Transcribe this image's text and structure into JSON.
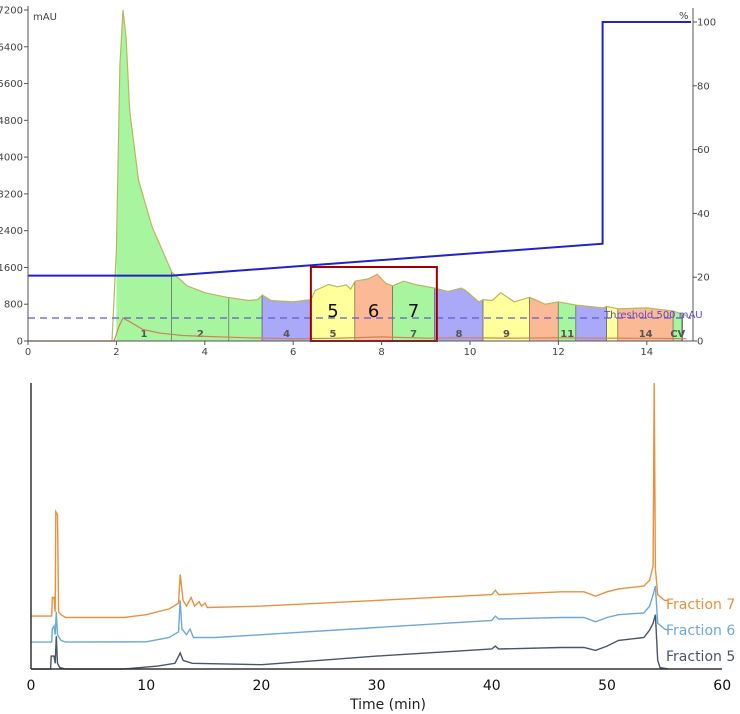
{
  "chart_data": [
    {
      "type": "area",
      "left_axis_unit": "mAU",
      "right_axis_unit": "%",
      "xlim": [
        0,
        15
      ],
      "ylim": [
        0,
        7200
      ],
      "y2lim": [
        0,
        100
      ],
      "x_ticks": [
        "0",
        "2",
        "4",
        "6",
        "8",
        "10",
        "12",
        "14"
      ],
      "y_ticks": [
        "0",
        "800",
        "1600",
        "2400",
        "3200",
        "4000",
        "4800",
        "5600",
        "6400",
        "7200"
      ],
      "y2_ticks": [
        "0",
        "20",
        "40",
        "60",
        "80",
        "100"
      ],
      "uv_trace": [
        [
          0,
          0
        ],
        [
          1.9,
          0
        ],
        [
          2.0,
          2000
        ],
        [
          2.08,
          6000
        ],
        [
          2.15,
          7200
        ],
        [
          2.22,
          6600
        ],
        [
          2.3,
          5000
        ],
        [
          2.5,
          3500
        ],
        [
          2.8,
          2500
        ],
        [
          3.25,
          1500
        ],
        [
          3.6,
          1200
        ],
        [
          4,
          1050
        ],
        [
          4.5,
          950
        ],
        [
          5.0,
          880
        ],
        [
          5.2,
          900
        ],
        [
          5.3,
          1000
        ],
        [
          5.5,
          880
        ],
        [
          6.0,
          850
        ],
        [
          6.4,
          900
        ],
        [
          6.5,
          1100
        ],
        [
          6.8,
          1230
        ],
        [
          7.0,
          1180
        ],
        [
          7.2,
          1220
        ],
        [
          7.3,
          1130
        ],
        [
          7.4,
          1300
        ],
        [
          7.7,
          1350
        ],
        [
          7.9,
          1450
        ],
        [
          8.1,
          1250
        ],
        [
          8.25,
          1200
        ],
        [
          8.5,
          1300
        ],
        [
          8.8,
          1220
        ],
        [
          9.2,
          1150
        ],
        [
          9.5,
          1080
        ],
        [
          9.8,
          1150
        ],
        [
          9.9,
          1100
        ],
        [
          10.2,
          850
        ],
        [
          10.3,
          900
        ],
        [
          10.5,
          880
        ],
        [
          10.7,
          1050
        ],
        [
          11.0,
          850
        ],
        [
          11.35,
          950
        ],
        [
          11.7,
          800
        ],
        [
          12.0,
          850
        ],
        [
          12.4,
          780
        ],
        [
          13.0,
          720
        ],
        [
          13.1,
          750
        ],
        [
          13.35,
          700
        ],
        [
          14.0,
          720
        ],
        [
          14.6,
          650
        ],
        [
          14.9,
          550
        ]
      ],
      "second_trace": [
        [
          0,
          0
        ],
        [
          1.95,
          0
        ],
        [
          2.05,
          300
        ],
        [
          2.15,
          500
        ],
        [
          2.3,
          420
        ],
        [
          2.6,
          250
        ],
        [
          3.0,
          170
        ],
        [
          3.5,
          120
        ],
        [
          4.0,
          100
        ],
        [
          5.0,
          70
        ],
        [
          6.0,
          50
        ],
        [
          7.0,
          60
        ],
        [
          8.0,
          90
        ],
        [
          9.0,
          60
        ],
        [
          10.0,
          70
        ],
        [
          11.0,
          60
        ],
        [
          12.0,
          70
        ],
        [
          13.0,
          60
        ],
        [
          14.0,
          60
        ],
        [
          14.9,
          50
        ]
      ],
      "gradient_percent": [
        [
          0,
          20.5
        ],
        [
          3.25,
          20.5
        ],
        [
          13.0,
          30.5
        ],
        [
          13.0,
          100
        ],
        [
          15,
          100
        ]
      ],
      "threshold": {
        "value": 500,
        "label": "Threshold 500 mAU"
      },
      "fractions": [
        {
          "start": 2.0,
          "end": 3.25,
          "label": "1",
          "color": "#a8f5a0"
        },
        {
          "start": 3.25,
          "end": 4.55,
          "label": "2",
          "color": "#a8f5a0"
        },
        {
          "start": 4.55,
          "end": 5.3,
          "label": "",
          "color": "#a8f5a0"
        },
        {
          "start": 5.3,
          "end": 6.4,
          "label": "4",
          "color": "#a9a9f7"
        },
        {
          "start": 6.4,
          "end": 7.4,
          "label": "5",
          "color": "#ffff9c"
        },
        {
          "start": 7.4,
          "end": 8.25,
          "label": "",
          "color": "#fbb995"
        },
        {
          "start": 8.25,
          "end": 9.2,
          "label": "7",
          "color": "#a8f5a0"
        },
        {
          "start": 9.2,
          "end": 10.3,
          "label": "8",
          "color": "#a9a9f7"
        },
        {
          "start": 10.3,
          "end": 11.35,
          "label": "9",
          "color": "#ffff9c"
        },
        {
          "start": 11.35,
          "end": 12.0,
          "label": "",
          "color": "#fbb995"
        },
        {
          "start": 12.0,
          "end": 12.4,
          "label": "11",
          "color": "#a8f5a0"
        },
        {
          "start": 12.4,
          "end": 13.1,
          "label": "",
          "color": "#a9a9f7"
        },
        {
          "start": 13.1,
          "end": 13.35,
          "label": "",
          "color": "#ffff9c"
        },
        {
          "start": 13.35,
          "end": 14.6,
          "label": "14",
          "color": "#fbb995"
        },
        {
          "start": 14.6,
          "end": 14.8,
          "label": "CV",
          "color": "#a8f5a0"
        }
      ],
      "highlight": {
        "start": 6.4,
        "end": 9.25,
        "labels": [
          "5",
          "6",
          "7"
        ],
        "color": "#a00000"
      }
    },
    {
      "type": "line",
      "xlabel": "Time (min)",
      "xlim": [
        0,
        60
      ],
      "x_ticks": [
        "0",
        "10",
        "20",
        "30",
        "40",
        "50",
        "60"
      ],
      "series": [
        {
          "name": "Fraction 7",
          "color": "#e8913f",
          "values": [
            [
              0,
              18.5
            ],
            [
              1.8,
              18.5
            ],
            [
              1.85,
              25
            ],
            [
              2.0,
              25
            ],
            [
              2.1,
              20
            ],
            [
              2.15,
              55
            ],
            [
              2.3,
              54
            ],
            [
              2.4,
              20
            ],
            [
              2.6,
              19
            ],
            [
              3,
              18
            ],
            [
              8,
              18
            ],
            [
              10,
              19
            ],
            [
              12,
              21
            ],
            [
              12.8,
              23
            ],
            [
              12.95,
              33
            ],
            [
              13.2,
              24
            ],
            [
              13.5,
              22
            ],
            [
              13.9,
              25
            ],
            [
              14.2,
              22
            ],
            [
              14.6,
              23.5
            ],
            [
              14.8,
              22
            ],
            [
              15.1,
              23
            ],
            [
              15.3,
              21.5
            ],
            [
              20,
              22
            ],
            [
              30,
              24
            ],
            [
              40,
              26
            ],
            [
              40.3,
              27.5
            ],
            [
              40.6,
              26
            ],
            [
              46,
              27
            ],
            [
              48,
              27
            ],
            [
              49,
              25.5
            ],
            [
              50,
              27
            ],
            [
              51,
              28
            ],
            [
              53.2,
              29
            ],
            [
              53.7,
              31
            ],
            [
              54.0,
              36
            ],
            [
              54.1,
              100
            ],
            [
              54.2,
              35
            ],
            [
              54.4,
              26
            ],
            [
              55,
              24
            ],
            [
              55.3,
              24
            ]
          ]
        },
        {
          "name": "Fraction 6",
          "color": "#6ea8d6",
          "values": [
            [
              0,
              9.4
            ],
            [
              1.8,
              9.4
            ],
            [
              1.85,
              14
            ],
            [
              2.0,
              15
            ],
            [
              2.1,
              12
            ],
            [
              2.2,
              20
            ],
            [
              2.3,
              12
            ],
            [
              2.6,
              10
            ],
            [
              3,
              9.4
            ],
            [
              10,
              9.5
            ],
            [
              12,
              11
            ],
            [
              12.8,
              13
            ],
            [
              12.95,
              24
            ],
            [
              13.1,
              14
            ],
            [
              13.5,
              12
            ],
            [
              13.8,
              14
            ],
            [
              14.1,
              11
            ],
            [
              16,
              11
            ],
            [
              20,
              12
            ],
            [
              30,
              14.5
            ],
            [
              40,
              17
            ],
            [
              40.3,
              18.5
            ],
            [
              40.6,
              17.5
            ],
            [
              46,
              18
            ],
            [
              48,
              18
            ],
            [
              49,
              16.5
            ],
            [
              50,
              18
            ],
            [
              51,
              19
            ],
            [
              53.2,
              19.6
            ],
            [
              53.7,
              22
            ],
            [
              54.0,
              26
            ],
            [
              54.2,
              29
            ],
            [
              54.4,
              16
            ],
            [
              55,
              14
            ],
            [
              55.3,
              13.6
            ]
          ]
        },
        {
          "name": "Fraction 5",
          "color": "#4a5568",
          "values": [
            [
              0,
              0
            ],
            [
              1.7,
              0
            ],
            [
              1.75,
              4.5
            ],
            [
              2.0,
              4.5
            ],
            [
              2.1,
              2
            ],
            [
              2.2,
              11.5
            ],
            [
              2.3,
              2
            ],
            [
              2.5,
              0.5
            ],
            [
              3,
              0
            ],
            [
              8,
              0
            ],
            [
              9.5,
              0.5
            ],
            [
              11,
              1
            ],
            [
              12.5,
              2
            ],
            [
              12.95,
              5.6
            ],
            [
              13.2,
              3
            ],
            [
              14,
              2
            ],
            [
              20,
              1.5
            ],
            [
              25,
              3
            ],
            [
              30,
              4.5
            ],
            [
              40,
              7
            ],
            [
              40.3,
              8
            ],
            [
              40.6,
              7
            ],
            [
              46,
              7.5
            ],
            [
              48,
              7.5
            ],
            [
              49,
              6.5
            ],
            [
              50,
              8
            ],
            [
              51,
              10
            ],
            [
              53.2,
              11
            ],
            [
              53.7,
              13.6
            ],
            [
              54.0,
              16
            ],
            [
              54.2,
              19
            ],
            [
              54.4,
              3
            ],
            [
              54.6,
              0.5
            ],
            [
              55.3,
              0
            ]
          ]
        }
      ]
    }
  ]
}
